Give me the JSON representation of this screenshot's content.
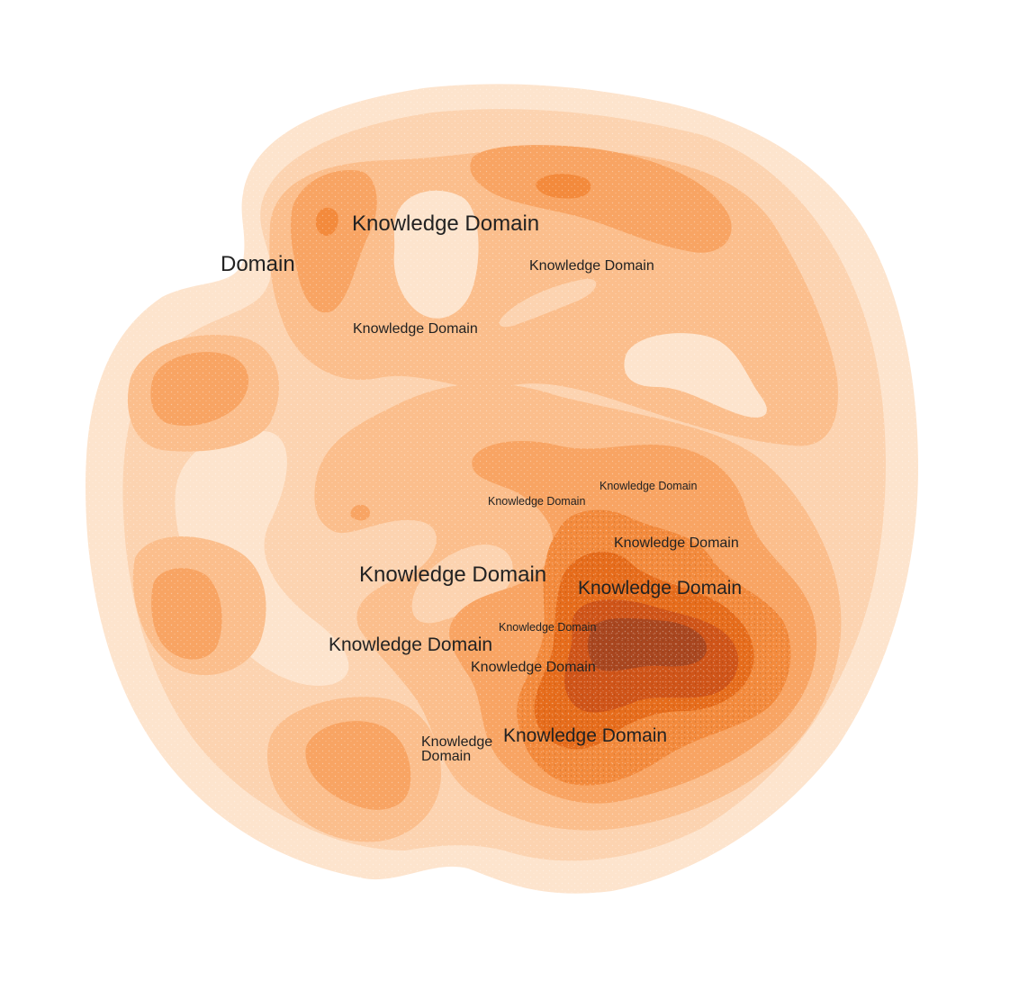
{
  "map": {
    "labels": [
      {
        "id": "domain-top-left",
        "text": "Domain"
      },
      {
        "id": "kd-top-large",
        "text": "Knowledge Domain"
      },
      {
        "id": "kd-top-right",
        "text": "Knowledge Domain"
      },
      {
        "id": "kd-upper-mid",
        "text": "Knowledge Domain"
      },
      {
        "id": "kd-center-small-a",
        "text": "Knowledge Domain"
      },
      {
        "id": "kd-center-small-b",
        "text": "Knowledge Domain"
      },
      {
        "id": "kd-right-mid",
        "text": "Knowledge Domain"
      },
      {
        "id": "kd-center-large",
        "text": "Knowledge Domain"
      },
      {
        "id": "kd-peak",
        "text": "Knowledge Domain"
      },
      {
        "id": "kd-peak-small",
        "text": "Knowledge Domain"
      },
      {
        "id": "kd-lower-left",
        "text": "Knowledge Domain"
      },
      {
        "id": "kd-lower-mid",
        "text": "Knowledge Domain"
      },
      {
        "id": "kd-bottom-wrap-1",
        "text": "Knowledge"
      },
      {
        "id": "kd-bottom-wrap-2",
        "text": "Domain"
      },
      {
        "id": "kd-bottom",
        "text": "Knowledge Domain"
      }
    ],
    "palette": {
      "level1": "#fde4cd",
      "level2": "#fcd3b0",
      "level3": "#fbbe8c",
      "level4": "#f8a463",
      "level5": "#f38a3c",
      "level6": "#e66c1b",
      "level7": "#cf5418",
      "level8": "#a8461f"
    }
  }
}
